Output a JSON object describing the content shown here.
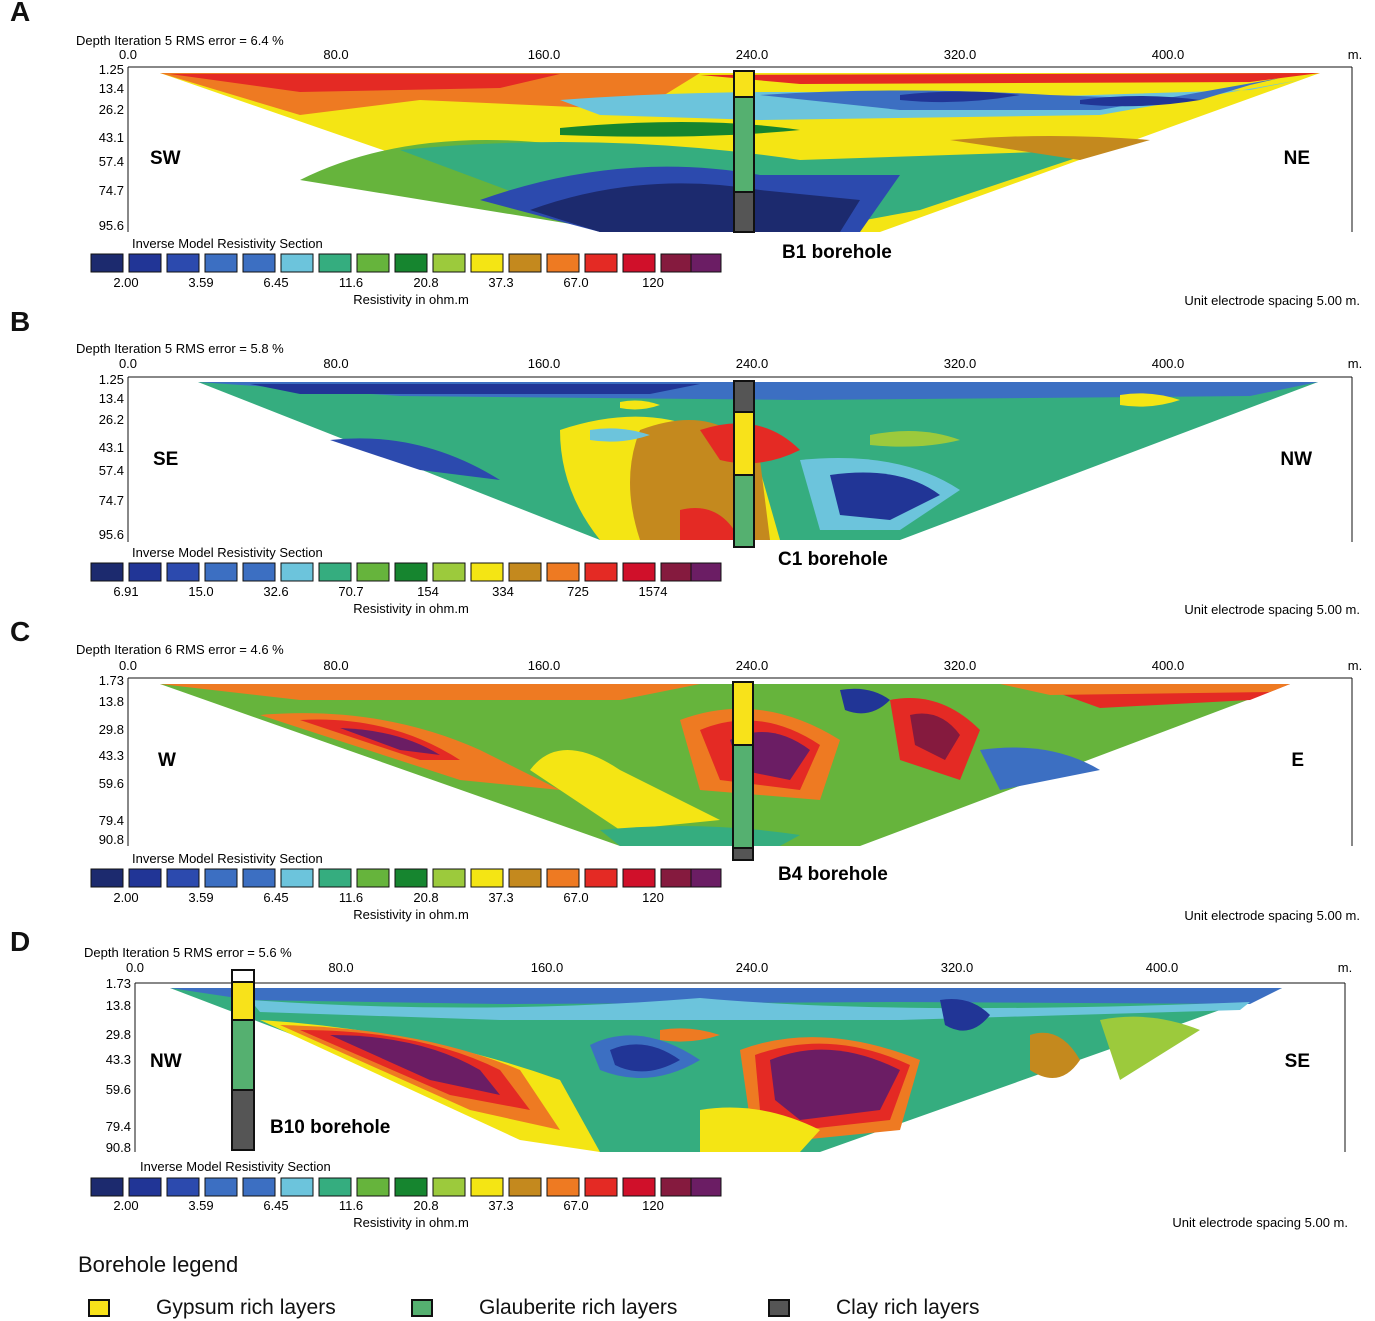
{
  "panels": [
    {
      "letter": "A",
      "header": "Depth    Iteration 5 RMS error = 6.4 %",
      "x_ticks": [
        "0.0",
        "80.0",
        "160.0",
        "240.0",
        "320.0",
        "400.0"
      ],
      "x_unit": "m.",
      "depths": [
        "1.25",
        "13.4",
        "26.2",
        "43.1",
        "57.4",
        "74.7",
        "95.6"
      ],
      "left_dir": "SW",
      "right_dir": "NE",
      "scale_title": "Inverse Model Resistivity Section",
      "scale_values": [
        "2.00",
        "3.59",
        "6.45",
        "11.6",
        "20.8",
        "37.3",
        "67.0",
        "120"
      ],
      "scale_unit": "Resistivity in ohm.m",
      "spacing": "Unit electrode spacing 5.00 m.",
      "borehole_label": "B1 borehole"
    },
    {
      "letter": "B",
      "header": "Depth    Iteration 5 RMS error = 5.8 %",
      "x_ticks": [
        "0.0",
        "80.0",
        "160.0",
        "240.0",
        "320.0",
        "400.0"
      ],
      "x_unit": "m.",
      "depths": [
        "1.25",
        "13.4",
        "26.2",
        "43.1",
        "57.4",
        "74.7",
        "95.6"
      ],
      "left_dir": "SE",
      "right_dir": "NW",
      "scale_title": "Inverse Model Resistivity Section",
      "scale_values": [
        "6.91",
        "15.0",
        "32.6",
        "70.7",
        "154",
        "334",
        "725",
        "1574"
      ],
      "scale_unit": "Resistivity in ohm.m",
      "spacing": "Unit electrode spacing 5.00 m.",
      "borehole_label": "C1 borehole"
    },
    {
      "letter": "C",
      "header": "Depth    Iteration 6 RMS error = 4.6 %",
      "x_ticks": [
        "0.0",
        "80.0",
        "160.0",
        "240.0",
        "320.0",
        "400.0"
      ],
      "x_unit": "m.",
      "depths": [
        "1.73",
        "13.8",
        "29.8",
        "43.3",
        "59.6",
        "79.4",
        "90.8"
      ],
      "left_dir": "W",
      "right_dir": "E",
      "scale_title": "Inverse Model Resistivity Section",
      "scale_values": [
        "2.00",
        "3.59",
        "6.45",
        "11.6",
        "20.8",
        "37.3",
        "67.0",
        "120"
      ],
      "scale_unit": "Resistivity in ohm.m",
      "spacing": "Unit electrode spacing 5.00 m.",
      "borehole_label": "B4 borehole"
    },
    {
      "letter": "D",
      "header": "Depth    Iteration 5 RMS error = 5.6 %",
      "x_ticks": [
        "0.0",
        "80.0",
        "160.0",
        "240.0",
        "320.0",
        "400.0"
      ],
      "x_unit": "m.",
      "depths": [
        "1.73",
        "13.8",
        "29.8",
        "43.3",
        "59.6",
        "79.4",
        "90.8"
      ],
      "left_dir": "NW",
      "right_dir": "SE",
      "scale_title": "Inverse Model Resistivity Section",
      "scale_values": [
        "2.00",
        "3.59",
        "6.45",
        "11.6",
        "20.8",
        "37.3",
        "67.0",
        "120"
      ],
      "scale_unit": "Resistivity in ohm.m",
      "spacing": "Unit electrode spacing 5.00 m.",
      "borehole_label": "B10 borehole"
    }
  ],
  "colors": {
    "scale": [
      "#1c2a6e",
      "#213596",
      "#2c4aae",
      "#3c6fc2",
      "#6cc4dc",
      "#35ad7f",
      "#66b43c",
      "#16852f",
      "#9cca3c",
      "#f4e514",
      "#c4891e",
      "#ee7a22",
      "#e42a24",
      "#d0102a",
      "#851a3e",
      "#6b1d64"
    ],
    "gypsum": "#f8e21a",
    "glauberite": "#55b070",
    "clay": "#555555"
  },
  "legend": {
    "title": "Borehole legend",
    "items": [
      {
        "label": "Gypsum rich layers",
        "color": "#f8e21a"
      },
      {
        "label": "Glauberite rich layers",
        "color": "#55b070"
      },
      {
        "label": "Clay rich layers",
        "color": "#555555"
      }
    ]
  }
}
